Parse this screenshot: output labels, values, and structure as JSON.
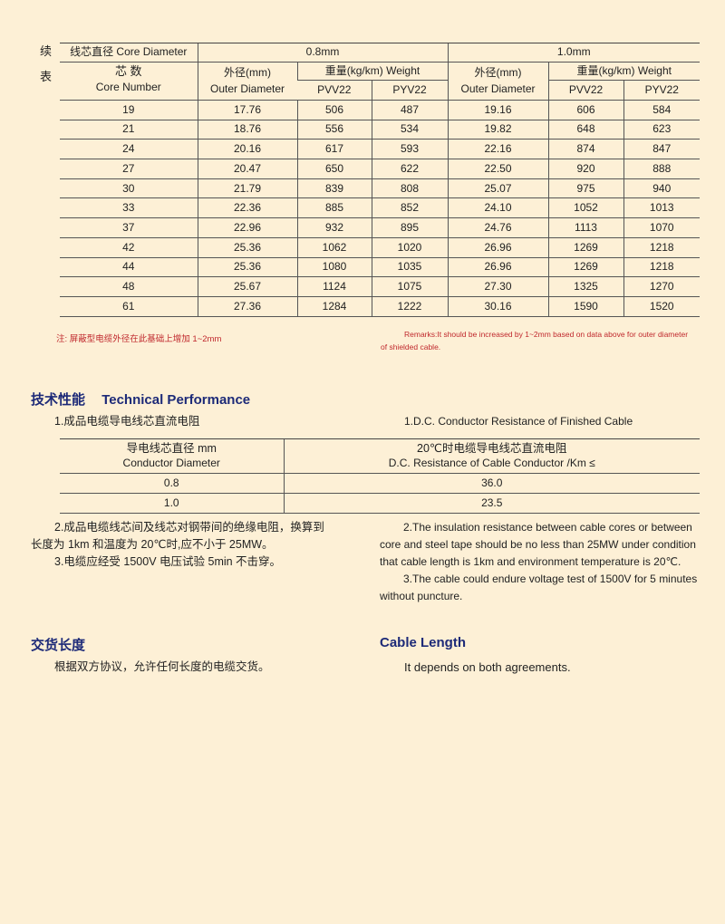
{
  "side_label": [
    "续",
    "表"
  ],
  "main_table": {
    "core_diameter_label": "线芯直径 Core Diameter",
    "size_a": "0.8mm",
    "size_b": "1.0mm",
    "core_number_cn": "芯 数",
    "core_number_en": "Core Number",
    "outer_cn": "外径(mm)",
    "outer_en": "Outer Diameter",
    "weight_label": "重量(kg/km) Weight",
    "pvv": "PVV22",
    "pyv": "PYV22",
    "rows": [
      [
        "19",
        "17.76",
        "506",
        "487",
        "19.16",
        "606",
        "584"
      ],
      [
        "21",
        "18.76",
        "556",
        "534",
        "19.82",
        "648",
        "623"
      ],
      [
        "24",
        "20.16",
        "617",
        "593",
        "22.16",
        "874",
        "847"
      ],
      [
        "27",
        "20.47",
        "650",
        "622",
        "22.50",
        "920",
        "888"
      ],
      [
        "30",
        "21.79",
        "839",
        "808",
        "25.07",
        "975",
        "940"
      ],
      [
        "33",
        "22.36",
        "885",
        "852",
        "24.10",
        "1052",
        "1013"
      ],
      [
        "37",
        "22.96",
        "932",
        "895",
        "24.76",
        "1113",
        "1070"
      ],
      [
        "42",
        "25.36",
        "1062",
        "1020",
        "26.96",
        "1269",
        "1218"
      ],
      [
        "44",
        "25.36",
        "1080",
        "1035",
        "26.96",
        "1269",
        "1218"
      ],
      [
        "48",
        "25.67",
        "1124",
        "1075",
        "27.30",
        "1325",
        "1270"
      ],
      [
        "61",
        "27.36",
        "1284",
        "1222",
        "30.16",
        "1590",
        "1520"
      ]
    ]
  },
  "note_cn": "注:  屏蔽型电缆外径在此基础上增加 1~2mm",
  "note_en_1": "Remarks:It should be increased by 1~2mm based on data above for outer diameter",
  "note_en_2": "of shielded cable.",
  "tech": {
    "heading_cn": "技术性能",
    "heading_en": "Technical Performance",
    "item1_cn": "1.成品电缆导电线芯直流电阻",
    "item1_en": "1.D.C. Conductor Resistance of Finished Cable",
    "res_table": {
      "col1_cn": "导电线芯直径 mm",
      "col1_en": "Conductor Diameter",
      "col2_cn": "20℃时电缆导电线芯直流电阻",
      "col2_en": "D.C. Resistance of Cable Conductor    /Km ≤",
      "rows": [
        [
          "0.8",
          "36.0"
        ],
        [
          "1.0",
          "23.5"
        ]
      ]
    },
    "item2_cn_1": "2.成品电缆线芯间及线芯对钢带间的绝缘电阻，换算到",
    "item2_cn_2": "长度为 1km 和温度为 20℃时,应不小于 25MW。",
    "item3_cn": "3.电缆应经受 1500V 电压试验 5min 不击穿。",
    "item2_en_1": "2.The insulation resistance between cable cores or between",
    "item2_en_2": "core and steel tape should be no less than 25MW under condition",
    "item2_en_3": "that cable length is 1km and environment temperature is 20℃.",
    "item3_en_1": "3.The cable could endure voltage test of 1500V for 5 minutes",
    "item3_en_2": "without puncture."
  },
  "length": {
    "heading_cn": "交货长度",
    "heading_en": "Cable Length",
    "text_cn": "根据双方协议，允许任何长度的电缆交货。",
    "text_en": "It depends on both agreements."
  }
}
